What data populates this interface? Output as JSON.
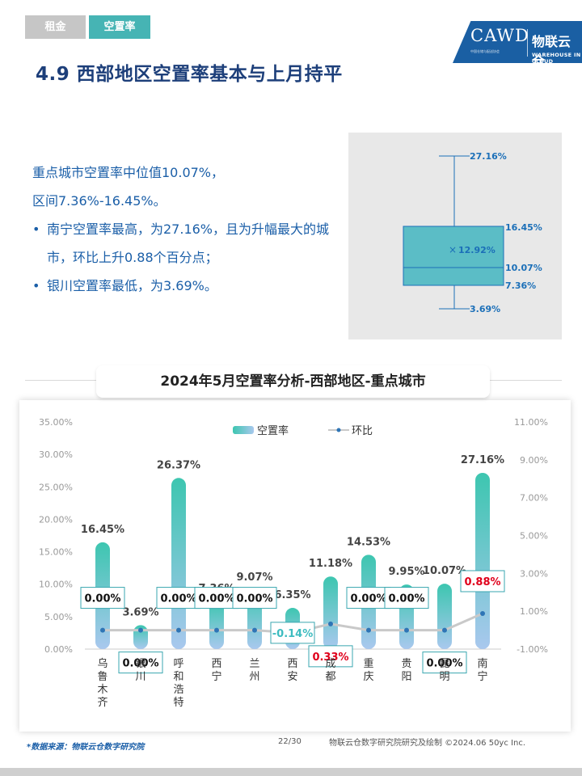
{
  "tabs": [
    {
      "label": "租金"
    },
    {
      "label": "空置率"
    }
  ],
  "logo": {
    "main": "CAWD",
    "sub": "中国仓储与配送协会",
    "cn": "物联云仓",
    "en": "WAREHOUSE IN CLOUD"
  },
  "page_title": "4.9 西部地区空置率基本与上月持平",
  "summary": {
    "line1": "重点城市空置率中位值10.07%，",
    "line2": "区间7.36%-16.45%。",
    "bullet1": "南宁空置率最高，为27.16%，且为升幅最大的城市，环比上升0.88个百分点；",
    "bullet2": "银川空置率最低，为3.69%。"
  },
  "boxplot": {
    "max": "27.16%",
    "q3": "16.45%",
    "mean": "12.92%",
    "median": "10.07%",
    "q1": "7.36%",
    "min": "3.69%",
    "mean_marker": "×",
    "fill": "#5bbdc6",
    "stroke": "#1b6fb8"
  },
  "chart_title": "2024年5月空置率分析-西部地区-重点城市",
  "chart_data": {
    "type": "bar",
    "title": "2024年5月空置率分析-西部地区-重点城市",
    "categories": [
      "乌鲁木齐",
      "银川",
      "呼和浩特",
      "西宁",
      "兰州",
      "西安",
      "成都",
      "重庆",
      "贵阳",
      "昆明",
      "南宁"
    ],
    "series": [
      {
        "name": "空置率",
        "type": "bar",
        "axis": "left",
        "values": [
          16.45,
          3.69,
          26.37,
          7.36,
          9.07,
          6.35,
          11.18,
          14.53,
          9.95,
          10.07,
          27.16
        ],
        "labels": [
          "16.45%",
          "3.69%",
          "26.37%",
          "7.36%",
          "9.07%",
          "6.35%",
          "11.18%",
          "14.53%",
          "9.95%",
          "10.07%",
          "27.16%"
        ]
      },
      {
        "name": "环比",
        "type": "line",
        "axis": "right",
        "values": [
          0.0,
          0.0,
          0.0,
          0.0,
          0.0,
          -0.14,
          0.33,
          0.0,
          0.0,
          0.0,
          0.88
        ],
        "labels": [
          "0.00%",
          "0.00%",
          "0.00%",
          "0.00%",
          "0.00%",
          "-0.14%",
          "0.33%",
          "0.00%",
          "0.00%",
          "0.00%",
          "0.88%"
        ]
      }
    ],
    "left_ticks": [
      "0.00%",
      "5.00%",
      "10.00%",
      "15.00%",
      "20.00%",
      "25.00%",
      "30.00%",
      "35.00%"
    ],
    "right_ticks": [
      "-1.00%",
      "1.00%",
      "3.00%",
      "5.00%",
      "7.00%",
      "9.00%",
      "11.00%"
    ],
    "ylim": [
      0,
      35
    ],
    "y2lim": [
      -1,
      11
    ],
    "legend": [
      "空置率",
      "环比"
    ],
    "legend_position": "top",
    "colors": {
      "bar_top": "#3dc6b0",
      "bar_bottom": "#a9c8ee",
      "line": "#c9c9c9",
      "point": "#2e75b6",
      "positive": "#e0001b",
      "negative": "#3dbcc0",
      "neutral": "#111111"
    }
  },
  "footer": {
    "source": "*数据来源：物联云仓数字研究院",
    "page": "22/30",
    "credit": "物联云仓数字研究院研究及绘制  ©2024.06 50yc Inc."
  }
}
